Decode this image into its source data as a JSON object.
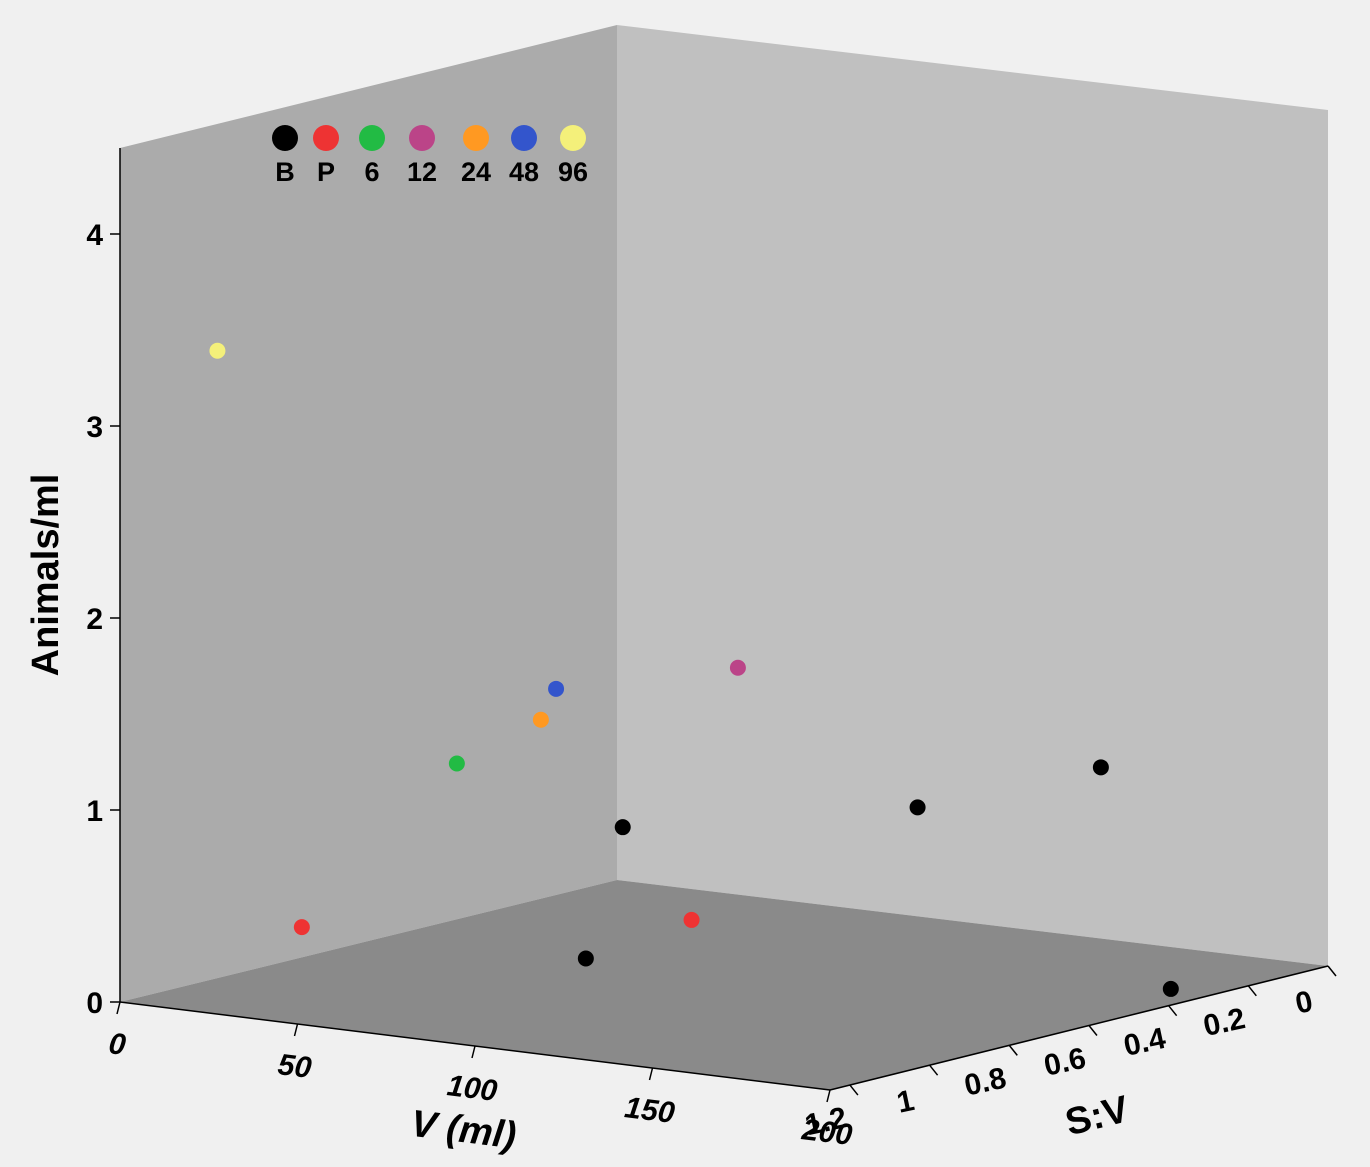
{
  "chart_data": {
    "type": "scatter",
    "title": "",
    "xlabel": "V (ml)",
    "ylabel": "Animals/ml",
    "zlabel": "S:V",
    "x_ticks": [
      "0",
      "50",
      "100",
      "150",
      "200"
    ],
    "z_ticks": [
      "0",
      "0.2",
      "0.4",
      "0.6",
      "0.8",
      "1",
      "1.2"
    ],
    "y_ticks": [
      "0",
      "1",
      "2",
      "3",
      "4"
    ],
    "legend_position": "top-left",
    "series": [
      {
        "name": "B",
        "color": "#000000",
        "points": [
          {
            "v": 35,
            "sv": 0.3,
            "animals": 0.5
          },
          {
            "v": 90,
            "sv": 0.05,
            "animals": 0.6
          },
          {
            "v": 145,
            "sv": 0.08,
            "animals": 0.95
          },
          {
            "v": 120,
            "sv": 1.15,
            "animals": 0.45
          },
          {
            "v": 195,
            "sv": 0.35,
            "animals": 0.05
          }
        ]
      },
      {
        "name": "P",
        "color": "#ee3333",
        "points": [
          {
            "v": 40,
            "sv": 1.15,
            "animals": 0.43
          },
          {
            "v": 60,
            "sv": 0.35,
            "animals": 0.1
          }
        ]
      },
      {
        "name": "6",
        "color": "#22bb44",
        "points": [
          {
            "v": 50,
            "sv": 0.85,
            "animals": 1.15
          }
        ]
      },
      {
        "name": "12",
        "color": "#bb4488",
        "points": [
          {
            "v": 45,
            "sv": 0.1,
            "animals": 1.25
          }
        ]
      },
      {
        "name": "24",
        "color": "#ff9922",
        "points": [
          {
            "v": 40,
            "sv": 0.55,
            "animals": 1.2
          }
        ]
      },
      {
        "name": "48",
        "color": "#3355cc",
        "points": [
          {
            "v": 5,
            "sv": 0.2,
            "animals": 1.1
          }
        ]
      },
      {
        "name": "96",
        "color": "#f4f07a",
        "points": [
          {
            "v": 5,
            "sv": 1.05,
            "animals": 3.3
          }
        ]
      }
    ]
  }
}
